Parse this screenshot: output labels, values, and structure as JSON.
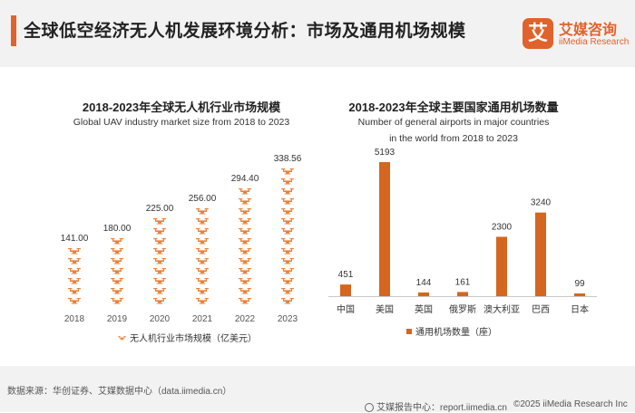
{
  "page": {
    "title": "全球低空经济无人机发展环境分析：市场及通用机场规模",
    "logo_mark": "艾",
    "logo_cn": "艾媒咨询",
    "logo_en": "iiMedia Research",
    "source": "数据来源：华创证券、艾媒数据中心（data.iimedia.cn）",
    "report_center": "艾媒报告中心：report.iimedia.cn",
    "copyright": "©2025  iiMedia Research Inc",
    "accent_color": "#e0622c"
  },
  "chart_data": [
    {
      "type": "bar",
      "title": "2018-2023年全球无人机行业市场规模",
      "subtitle": "Global UAV industry market size from 2018 to 2023",
      "categories": [
        "2018",
        "2019",
        "2020",
        "2021",
        "2022",
        "2023"
      ],
      "values": [
        141.0,
        180.0,
        225.0,
        256.0,
        294.4,
        338.56
      ],
      "value_labels": [
        "141.00",
        "180.00",
        "225.00",
        "256.00",
        "294.40",
        "338.56"
      ],
      "legend": "无人机行业市场规模（亿美元）",
      "legend_position": "bottom",
      "mark": "drone-icon-stack",
      "color": "#e8813a",
      "grid": false
    },
    {
      "type": "bar",
      "title": "2018-2023年全球主要国家通用机场数量",
      "subtitle_lines": [
        "Number of general airports in major countries",
        "in the world from 2018 to 2023"
      ],
      "categories": [
        "中国",
        "美国",
        "英国",
        "俄罗斯",
        "澳大利亚",
        "巴西",
        "日本"
      ],
      "values": [
        451,
        5193,
        144,
        161,
        2300,
        3240,
        99
      ],
      "value_labels": [
        "451",
        "5193",
        "144",
        "161",
        "2300",
        "3240",
        "99"
      ],
      "legend": "通用机场数量（座）",
      "legend_position": "bottom",
      "color": "#d4661f",
      "grid": false,
      "ylim": [
        0,
        5193
      ]
    }
  ]
}
